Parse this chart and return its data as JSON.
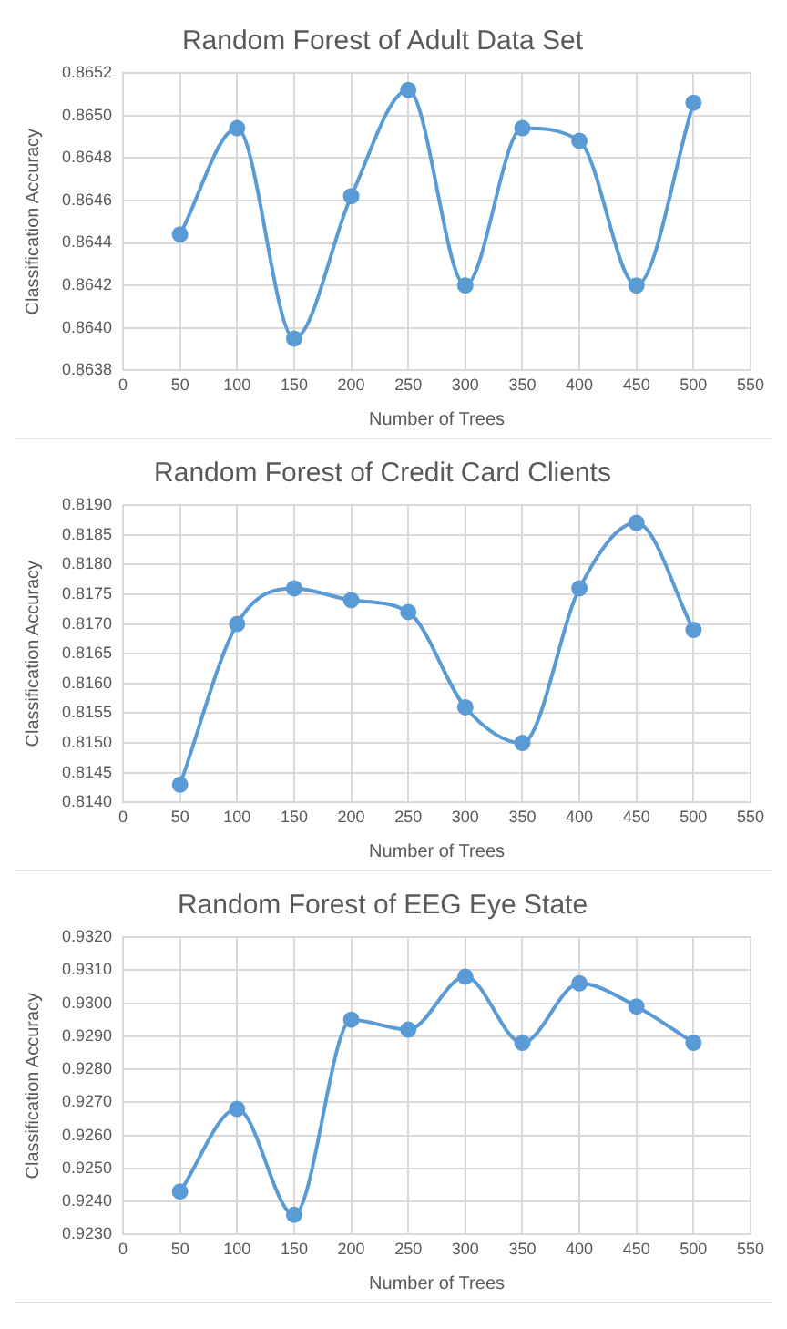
{
  "chart_data": [
    {
      "type": "line",
      "title": "Random Forest of Adult Data Set",
      "xlabel": "Number of Trees",
      "ylabel": "Classification Accuracy",
      "x": [
        50,
        100,
        150,
        200,
        250,
        300,
        350,
        400,
        450,
        500
      ],
      "series": [
        {
          "color": "#5b9bd5",
          "values": [
            0.86444,
            0.86494,
            0.86395,
            0.86462,
            0.86512,
            0.8642,
            0.86494,
            0.86488,
            0.8642,
            0.86506
          ]
        }
      ],
      "xlim": [
        0,
        550
      ],
      "xticks": [
        0,
        50,
        100,
        150,
        200,
        250,
        300,
        350,
        400,
        450,
        500,
        550
      ],
      "ylim": [
        0.8638,
        0.8652
      ],
      "yticks": [
        {
          "value": 0.8638,
          "label": "0.8638"
        },
        {
          "value": 0.864,
          "label": "0.8640"
        },
        {
          "value": 0.8642,
          "label": "0.8642"
        },
        {
          "value": 0.8644,
          "label": "0.8644"
        },
        {
          "value": 0.8646,
          "label": "0.8646"
        },
        {
          "value": 0.8648,
          "label": "0.8648"
        },
        {
          "value": 0.865,
          "label": "0.8650"
        },
        {
          "value": 0.8652,
          "label": "0.8652"
        }
      ],
      "grid": true,
      "legend": false,
      "marker": "circle",
      "line_style": "solid"
    },
    {
      "type": "line",
      "title": "Random Forest of Credit Card Clients",
      "xlabel": "Number of Trees",
      "ylabel": "Classification Accuracy",
      "x": [
        50,
        100,
        150,
        200,
        250,
        300,
        350,
        400,
        450,
        500
      ],
      "series": [
        {
          "color": "#5b9bd5",
          "values": [
            0.8143,
            0.817,
            0.8176,
            0.8174,
            0.8172,
            0.8156,
            0.815,
            0.8176,
            0.8187,
            0.8169
          ]
        }
      ],
      "xlim": [
        0,
        550
      ],
      "xticks": [
        0,
        50,
        100,
        150,
        200,
        250,
        300,
        350,
        400,
        450,
        500,
        550
      ],
      "ylim": [
        0.814,
        0.819
      ],
      "yticks": [
        {
          "value": 0.814,
          "label": "0.8140"
        },
        {
          "value": 0.8145,
          "label": "0.8145"
        },
        {
          "value": 0.815,
          "label": "0.8150"
        },
        {
          "value": 0.8155,
          "label": "0.8155"
        },
        {
          "value": 0.816,
          "label": "0.8160"
        },
        {
          "value": 0.8165,
          "label": "0.8165"
        },
        {
          "value": 0.817,
          "label": "0.8170"
        },
        {
          "value": 0.8175,
          "label": "0.8175"
        },
        {
          "value": 0.818,
          "label": "0.8180"
        },
        {
          "value": 0.8185,
          "label": "0.8185"
        },
        {
          "value": 0.819,
          "label": "0.8190"
        }
      ],
      "grid": true,
      "legend": false,
      "marker": "circle",
      "line_style": "solid"
    },
    {
      "type": "line",
      "title": "Random Forest of EEG Eye State",
      "xlabel": "Number of Trees",
      "ylabel": "Classification Accuracy",
      "x": [
        50,
        100,
        150,
        200,
        250,
        300,
        350,
        400,
        450,
        500
      ],
      "series": [
        {
          "color": "#5b9bd5",
          "values": [
            0.9243,
            0.9268,
            0.9236,
            0.9295,
            0.9292,
            0.9308,
            0.9288,
            0.9306,
            0.9299,
            0.9288
          ]
        }
      ],
      "xlim": [
        0,
        550
      ],
      "xticks": [
        0,
        50,
        100,
        150,
        200,
        250,
        300,
        350,
        400,
        450,
        500,
        550
      ],
      "ylim": [
        0.923,
        0.932
      ],
      "yticks": [
        {
          "value": 0.923,
          "label": "0.9230"
        },
        {
          "value": 0.924,
          "label": "0.9240"
        },
        {
          "value": 0.925,
          "label": "0.9250"
        },
        {
          "value": 0.926,
          "label": "0.9260"
        },
        {
          "value": 0.927,
          "label": "0.9270"
        },
        {
          "value": 0.928,
          "label": "0.9280"
        },
        {
          "value": 0.929,
          "label": "0.9290"
        },
        {
          "value": 0.93,
          "label": "0.9300"
        },
        {
          "value": 0.931,
          "label": "0.9310"
        },
        {
          "value": 0.932,
          "label": "0.9320"
        }
      ],
      "grid": true,
      "legend": false,
      "marker": "circle",
      "line_style": "solid"
    }
  ]
}
